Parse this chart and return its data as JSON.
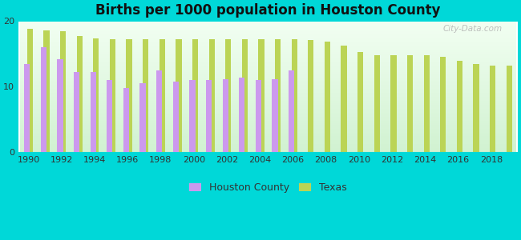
{
  "title": "Births per 1000 population in Houston County",
  "background_color": "#00d8d8",
  "years": [
    1990,
    1991,
    1992,
    1993,
    1994,
    1995,
    1996,
    1997,
    1998,
    1999,
    2000,
    2001,
    2002,
    2003,
    2004,
    2005,
    2006,
    2007,
    2008,
    2009,
    2010,
    2011,
    2012,
    2013,
    2014,
    2015,
    2016,
    2017,
    2018,
    2019
  ],
  "houston_county": [
    13.5,
    16.0,
    14.2,
    12.2,
    12.2,
    11.0,
    9.8,
    10.5,
    12.5,
    10.8,
    11.0,
    11.0,
    11.2,
    11.4,
    11.0,
    11.2,
    12.5,
    null,
    null,
    null,
    null,
    null,
    null,
    null,
    null,
    null,
    null,
    null,
    null,
    null
  ],
  "texas": [
    18.8,
    18.6,
    18.5,
    17.7,
    17.4,
    17.2,
    17.2,
    17.2,
    17.2,
    17.3,
    17.2,
    17.2,
    17.2,
    17.2,
    17.2,
    17.2,
    17.2,
    17.1,
    16.9,
    16.3,
    15.3,
    14.8,
    14.8,
    14.8,
    14.8,
    14.6,
    14.0,
    13.5,
    13.2,
    13.2
  ],
  "houston_color": "#cc99ee",
  "texas_color": "#bbd455",
  "ylim": [
    0,
    20
  ],
  "yticks": [
    0,
    10,
    20
  ],
  "legend_houston": "Houston County",
  "legend_texas": "Texas",
  "bar_width": 0.35,
  "title_fontsize": 12,
  "tick_fontsize": 8,
  "legend_fontsize": 9
}
